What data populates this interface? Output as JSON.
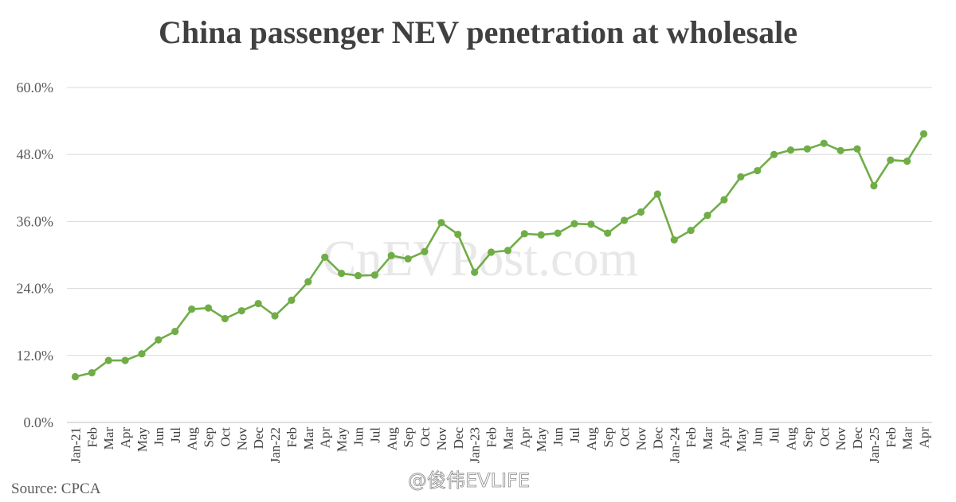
{
  "watermark": "CnEVPost.com",
  "credit": "@俊伟EVLIFE",
  "source": "Source: CPCA",
  "chart_data": {
    "type": "line",
    "title": "China passenger NEV penetration at wholesale",
    "xlabel": "",
    "ylabel": "",
    "ylim": [
      0,
      60
    ],
    "yticks": [
      "0.0%",
      "12.0%",
      "24.0%",
      "36.0%",
      "48.0%",
      "60.0%"
    ],
    "grid": true,
    "line_color": "#70ad47",
    "categories": [
      "Jan-21",
      "Feb",
      "Mar",
      "Apr",
      "May",
      "Jun",
      "Jul",
      "Aug",
      "Sep",
      "Oct",
      "Nov",
      "Dec",
      "Jan-22",
      "Feb",
      "Mar",
      "Apr",
      "May",
      "Jun",
      "Jul",
      "Aug",
      "Sep",
      "Oct",
      "Nov",
      "Dec",
      "Jan-23",
      "Feb",
      "Mar",
      "Apr",
      "May",
      "Jun",
      "Jul",
      "Aug",
      "Sep",
      "Oct",
      "Nov",
      "Dec",
      "Jan-24",
      "Feb",
      "Mar",
      "Apr",
      "May",
      "Jun",
      "Jul",
      "Aug",
      "Sep",
      "Oct",
      "Nov",
      "Dec",
      "Jan-25",
      "Feb",
      "Mar",
      "Apr"
    ],
    "series": [
      {
        "values": [
          8.2,
          8.9,
          11.1,
          11.1,
          12.3,
          14.8,
          16.3,
          20.3,
          20.5,
          18.6,
          20.0,
          21.3,
          19.1,
          21.9,
          25.2,
          29.6,
          26.7,
          26.3,
          26.4,
          29.9,
          29.3,
          30.6,
          35.8,
          33.7,
          26.9,
          30.5,
          30.8,
          33.8,
          33.6,
          33.9,
          35.6,
          35.5,
          33.9,
          36.2,
          37.7,
          40.9,
          32.7,
          34.4,
          37.1,
          39.9,
          44.0,
          45.1,
          48.0,
          48.8,
          49.0,
          50.0,
          48.7,
          49.0,
          42.4,
          47.0,
          46.8,
          51.7
        ]
      }
    ]
  }
}
